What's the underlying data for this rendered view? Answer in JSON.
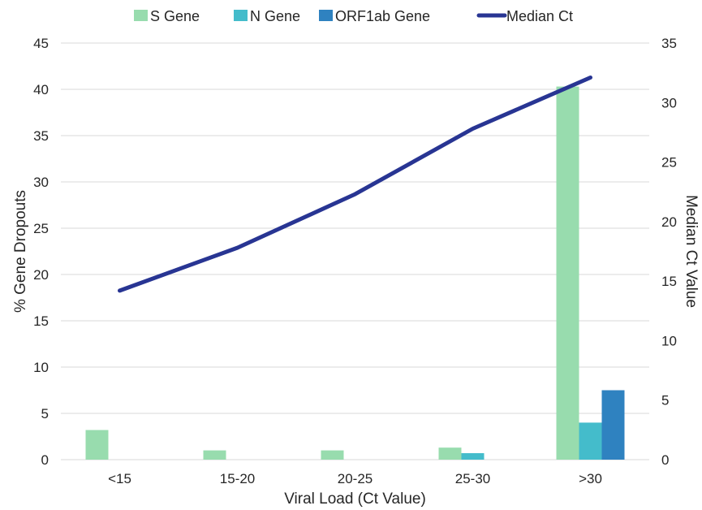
{
  "chart_data": {
    "type": "bar",
    "categories": [
      "<15",
      "15-20",
      "20-25",
      "25-30",
      ">30"
    ],
    "series": [
      {
        "name": "S Gene",
        "type": "bar",
        "axis": "left",
        "color": "#98dcae",
        "values": [
          3.2,
          1.0,
          1.0,
          1.3,
          40.3
        ]
      },
      {
        "name": "N Gene",
        "type": "bar",
        "axis": "left",
        "color": "#44bccb",
        "values": [
          0,
          0,
          0,
          0.7,
          4.0
        ]
      },
      {
        "name": "ORF1ab Gene",
        "type": "bar",
        "axis": "left",
        "color": "#2f82c0",
        "values": [
          0,
          0,
          0,
          0,
          7.5
        ]
      },
      {
        "name": "Median Ct",
        "type": "line",
        "axis": "right",
        "color": "#283593",
        "values": [
          14.2,
          17.8,
          22.3,
          27.8,
          32.1
        ]
      }
    ],
    "xlabel": "Viral Load (Ct Value)",
    "ylabel": "% Gene Dropouts",
    "y2label": "Median Ct Value",
    "ylim": [
      0,
      45
    ],
    "yticks": [
      0,
      5,
      10,
      15,
      20,
      25,
      30,
      35,
      40,
      45
    ],
    "y2lim": [
      0,
      35
    ],
    "y2ticks": [
      0,
      5,
      10,
      15,
      20,
      25,
      30,
      35
    ],
    "grid": true,
    "legend_position": "top"
  }
}
